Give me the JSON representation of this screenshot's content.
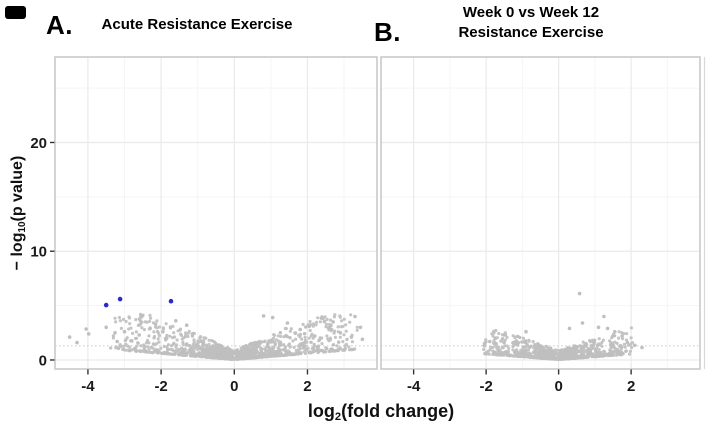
{
  "figure": {
    "panel_a_label": "A.",
    "panel_b_label": "B.",
    "panel_a_title": "Acute Resistance Exercise",
    "panel_b_title_line1": "Week 0 vs Week 12",
    "panel_b_title_line2": "Resistance Exercise",
    "x_axis_label_prefix": "log",
    "x_axis_label_sub": "2",
    "x_axis_label_suffix": "(fold change)",
    "y_axis_label_prefix": "− log",
    "y_axis_label_sub": "10",
    "y_axis_label_suffix": "(p value)",
    "colors": {
      "point_gray": "#bfbfbf",
      "highlight_blue": "#2a2ad4",
      "panel_border": "#c6c6c6",
      "grid_major": "#eaeaea",
      "grid_minor": "#f5f5f5",
      "threshold_line": "#cfcfcf",
      "tick_text": "#1a1a1a"
    }
  },
  "chart_data": [
    {
      "type": "scatter",
      "panel": "A",
      "title": "Acute Resistance Exercise",
      "xlabel": "log2(fold change)",
      "ylabel": "-log10(p value)",
      "xlim": [
        -4.9,
        3.9
      ],
      "ylim": [
        -0.83,
        27.86
      ],
      "xticks": [
        -4,
        -2,
        0,
        2
      ],
      "yticks": [
        0,
        10,
        20
      ],
      "xtick_labels": [
        "-4",
        "-2",
        "0",
        "2"
      ],
      "ytick_labels": [
        "0",
        "10",
        "20"
      ],
      "x_minor": [
        -3,
        -1,
        1,
        3
      ],
      "y_minor": [
        5,
        15,
        25
      ],
      "grid": true,
      "threshold_y": 1.3,
      "point_color": "#bfbfbf",
      "highlight_color": "#2a2ad4",
      "highlight_points": [
        [
          -3.5,
          5.05
        ],
        [
          -3.12,
          5.6
        ],
        [
          -1.73,
          5.4
        ]
      ],
      "outlier_points": [
        [
          -4.5,
          2.1
        ],
        [
          -4.3,
          1.6
        ],
        [
          -4.05,
          2.85
        ],
        [
          -3.98,
          2.4
        ],
        [
          -3.5,
          3.0
        ],
        [
          -3.26,
          2.5
        ],
        [
          -3.0,
          2.6
        ],
        [
          -3.2,
          1.7
        ],
        [
          -2.8,
          1.75
        ],
        [
          -2.5,
          4.1
        ],
        [
          -2.6,
          2.3
        ],
        [
          -2.3,
          2.9
        ],
        [
          -2.15,
          3.3
        ],
        [
          -1.95,
          2.6
        ],
        [
          -1.6,
          3.6
        ],
        [
          -1.3,
          3.2
        ],
        [
          0.8,
          4.05
        ],
        [
          1.05,
          3.9
        ],
        [
          1.45,
          3.4
        ],
        [
          1.8,
          2.8
        ],
        [
          2.05,
          3.1
        ],
        [
          2.38,
          3.85
        ],
        [
          2.7,
          3.5
        ],
        [
          2.6,
          2.9
        ],
        [
          2.9,
          2.5
        ],
        [
          3.3,
          4.0
        ],
        [
          3.2,
          2.1
        ],
        [
          3.45,
          3.0
        ],
        [
          3.5,
          1.9
        ],
        [
          2.2,
          2.2
        ]
      ],
      "cloud": {
        "n": 1500,
        "seed": 11,
        "x_core": 0.55,
        "x_tail": 2.9,
        "x_tail_pow": 2.8,
        "x_clip": [
          -4.6,
          3.55
        ],
        "y_base": 0.85,
        "y_slope": 1.15,
        "y_pow": 2.6,
        "y_lift": 0.28,
        "y_max": 4.2
      }
    },
    {
      "type": "scatter",
      "panel": "B",
      "title": "Week 0 vs Week 12 Resistance Exercise",
      "xlabel": "log2(fold change)",
      "ylabel": "-log10(p value)",
      "xlim": [
        -4.9,
        3.9
      ],
      "ylim": [
        -0.83,
        27.86
      ],
      "xticks": [
        -4,
        -2,
        0,
        2
      ],
      "yticks": [
        0,
        10,
        20
      ],
      "xtick_labels": [
        "-4",
        "-2",
        "0",
        "2"
      ],
      "ytick_labels": [
        "0",
        "10",
        "20"
      ],
      "x_minor": [
        -3,
        -1,
        1,
        3
      ],
      "y_minor": [
        5,
        15,
        25
      ],
      "grid": true,
      "threshold_y": 1.3,
      "point_color": "#bfbfbf",
      "highlight_color": "#2a2ad4",
      "highlight_points": [],
      "outlier_points": [
        [
          0.58,
          6.1
        ],
        [
          1.25,
          4.0
        ],
        [
          0.66,
          3.4
        ],
        [
          1.1,
          3.0
        ],
        [
          1.55,
          2.6
        ],
        [
          1.75,
          2.2
        ],
        [
          1.9,
          1.6
        ],
        [
          2.1,
          1.35
        ],
        [
          2.3,
          1.15
        ],
        [
          -1.9,
          1.7
        ],
        [
          -2.05,
          1.3
        ],
        [
          -1.75,
          2.0
        ],
        [
          -1.5,
          2.3
        ],
        [
          0.3,
          2.9
        ],
        [
          -0.9,
          2.6
        ],
        [
          1.35,
          2.9
        ]
      ],
      "cloud": {
        "n": 950,
        "seed": 23,
        "x_core": 0.5,
        "x_tail": 1.75,
        "x_tail_pow": 2.4,
        "x_clip": [
          -2.1,
          2.35
        ],
        "y_base": 0.8,
        "y_slope": 0.95,
        "y_pow": 2.6,
        "y_lift": 0.25,
        "y_max": 3.2
      }
    }
  ]
}
